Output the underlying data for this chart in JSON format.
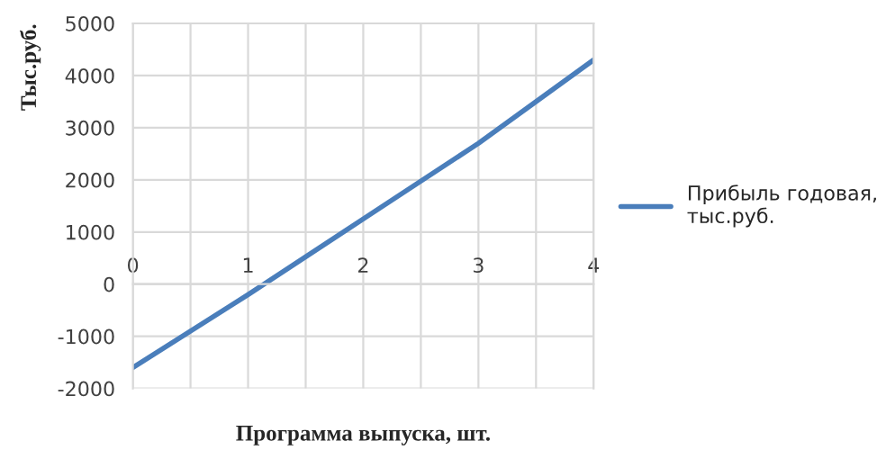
{
  "chart_data": {
    "type": "line",
    "x": [
      0,
      1,
      2,
      3,
      4
    ],
    "series": [
      {
        "name": "Прибыль годовая,\nтыс.руб.",
        "color": "#4a7ebb",
        "values": [
          -1600,
          -200,
          1250,
          2700,
          4300
        ]
      }
    ],
    "xlabel": "Программа выпуска, шт.",
    "ylabel": "Тыс.руб.",
    "xlim": [
      0,
      4
    ],
    "xticks": [
      0,
      {
        "value": 0.5,
        "label": null
      },
      1,
      {
        "value": 1.5,
        "label": null
      },
      2,
      {
        "value": 2.5,
        "label": null
      },
      3,
      {
        "value": 3.5,
        "label": null
      },
      4
    ],
    "ylim": [
      -2000,
      5000
    ],
    "yticks": [
      -2000,
      -1000,
      0,
      1000,
      2000,
      3000,
      4000,
      5000
    ],
    "grid": true,
    "legend": "right",
    "marker": "none",
    "line_style": "solid"
  }
}
